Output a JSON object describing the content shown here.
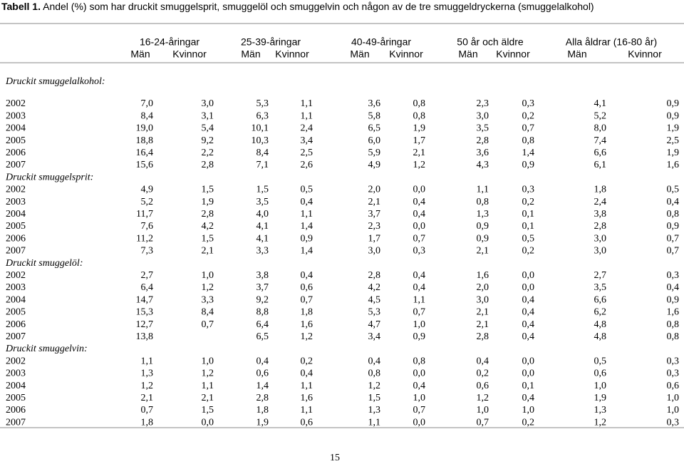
{
  "header": {
    "label": "Tabell 1.",
    "title": "Andel (%) som har druckit smuggelsprit, smuggelöl och smuggelvin och någon av de tre smuggeldryckerna (smuggelalkohol)",
    "groups": [
      "16-24-åringar",
      "25-39-åringar",
      "40-49-åringar",
      "50 år och äldre",
      "Alla åldrar (16-80 år)"
    ],
    "subheaders": [
      "Män",
      "Kvinnor",
      "Män",
      "Kvinnor",
      "Män",
      "Kvinnor",
      "Män",
      "Kvinnor",
      "Män",
      "Kvinnor"
    ]
  },
  "table": {
    "sections": [
      {
        "label": "Druckit smuggelalkohol:",
        "rows": [
          {
            "year": "2002",
            "cells": [
              "7,0",
              "3,0",
              "5,3",
              "1,1",
              "3,6",
              "0,8",
              "2,3",
              "0,3",
              "4,1",
              "0,9"
            ]
          },
          {
            "year": "2003",
            "cells": [
              "8,4",
              "3,1",
              "6,3",
              "1,1",
              "5,8",
              "0,8",
              "3,0",
              "0,2",
              "5,2",
              "0,9"
            ]
          },
          {
            "year": "2004",
            "cells": [
              "19,0",
              "5,4",
              "10,1",
              "2,4",
              "6,5",
              "1,9",
              "3,5",
              "0,7",
              "8,0",
              "1,9"
            ]
          },
          {
            "year": "2005",
            "cells": [
              "18,8",
              "9,2",
              "10,3",
              "3,4",
              "6,0",
              "1,7",
              "2,8",
              "0,8",
              "7,4",
              "2,5"
            ]
          },
          {
            "year": "2006",
            "cells": [
              "16,4",
              "2,2",
              "8,4",
              "2,5",
              "5,9",
              "2,1",
              "3,6",
              "1,4",
              "6,6",
              "1,9"
            ]
          },
          {
            "year": "2007",
            "cells": [
              "15,6",
              "2,8",
              "7,1",
              "2,6",
              "4,9",
              "1,2",
              "4,3",
              "0,9",
              "6,1",
              "1,6"
            ]
          }
        ]
      },
      {
        "label": "Druckit smuggelsprit:",
        "rows": [
          {
            "year": "2002",
            "cells": [
              "4,9",
              "1,5",
              "1,5",
              "0,5",
              "2,0",
              "0,0",
              "1,1",
              "0,3",
              "1,8",
              "0,5"
            ]
          },
          {
            "year": "2003",
            "cells": [
              "5,2",
              "1,9",
              "3,5",
              "0,4",
              "2,1",
              "0,4",
              "0,8",
              "0,2",
              "2,4",
              "0,4"
            ]
          },
          {
            "year": "2004",
            "cells": [
              "11,7",
              "2,8",
              "4,0",
              "1,1",
              "3,7",
              "0,4",
              "1,3",
              "0,1",
              "3,8",
              "0,8"
            ]
          },
          {
            "year": "2005",
            "cells": [
              "7,6",
              "4,2",
              "4,1",
              "1,4",
              "2,3",
              "0,0",
              "0,9",
              "0,1",
              "2,8",
              "0,9"
            ]
          },
          {
            "year": "2006",
            "cells": [
              "11,2",
              "1,5",
              "4,1",
              "0,9",
              "1,7",
              "0,7",
              "0,9",
              "0,5",
              "3,0",
              "0,7"
            ]
          },
          {
            "year": "2007",
            "cells": [
              "7,3",
              "2,1",
              "3,3",
              "1,4",
              "3,0",
              "0,3",
              "2,1",
              "0,2",
              "3,0",
              "0,7"
            ]
          }
        ]
      },
      {
        "label": "Druckit smuggelöl:",
        "rows": [
          {
            "year": "2002",
            "cells": [
              "2,7",
              "1,0",
              "3,8",
              "0,4",
              "2,8",
              "0,4",
              "1,6",
              "0,0",
              "2,7",
              "0,3"
            ]
          },
          {
            "year": "2003",
            "cells": [
              "6,4",
              "1,2",
              "3,7",
              "0,6",
              "4,2",
              "0,4",
              "2,0",
              "0,0",
              "3,5",
              "0,4"
            ]
          },
          {
            "year": "2004",
            "cells": [
              "14,7",
              "3,3",
              "9,2",
              "0,7",
              "4,5",
              "1,1",
              "3,0",
              "0,4",
              "6,6",
              "0,9"
            ]
          },
          {
            "year": "2005",
            "cells": [
              "15,3",
              "8,4",
              "8,8",
              "1,8",
              "5,3",
              "0,7",
              "2,1",
              "0,4",
              "6,2",
              "1,6"
            ]
          },
          {
            "year": "2006",
            "cells": [
              "12,7",
              "0,7",
              "6,4",
              "1,6",
              "4,7",
              "1,0",
              "2,1",
              "0,4",
              "4,8",
              "0,8"
            ]
          },
          {
            "year": "2007",
            "cells": [
              "13,8",
              null,
              "6,5",
              "1,2",
              "3,4",
              "0,9",
              "2,8",
              "0,4",
              "4,8",
              "0,8"
            ]
          }
        ]
      },
      {
        "label": "Druckit smuggelvin:",
        "rows": [
          {
            "year": "2002",
            "cells": [
              "1,1",
              "1,0",
              "0,4",
              "0,2",
              "0,4",
              "0,8",
              "0,4",
              "0,0",
              "0,5",
              "0,3"
            ]
          },
          {
            "year": "2003",
            "cells": [
              "1,3",
              "1,2",
              "0,6",
              "0,4",
              "0,8",
              "0,0",
              "0,2",
              "0,0",
              "0,6",
              "0,3"
            ]
          },
          {
            "year": "2004",
            "cells": [
              "1,2",
              "1,1",
              "1,4",
              "1,1",
              "1,2",
              "0,4",
              "0,6",
              "0,1",
              "1,0",
              "0,6"
            ]
          },
          {
            "year": "2005",
            "cells": [
              "2,1",
              "2,1",
              "2,8",
              "1,6",
              "1,5",
              "1,0",
              "1,2",
              "0,4",
              "1,9",
              "1,0"
            ]
          },
          {
            "year": "2006",
            "cells": [
              "0,7",
              "1,5",
              "1,8",
              "1,1",
              "1,3",
              "0,7",
              "1,0",
              "1,0",
              "1,3",
              "1,0"
            ]
          },
          {
            "year": "2007",
            "cells": [
              "1,8",
              "0,0",
              "1,9",
              "0,6",
              "1,1",
              "0,0",
              "0,7",
              "0,2",
              "1,2",
              "0,3"
            ]
          }
        ]
      }
    ]
  },
  "page_number": "15"
}
